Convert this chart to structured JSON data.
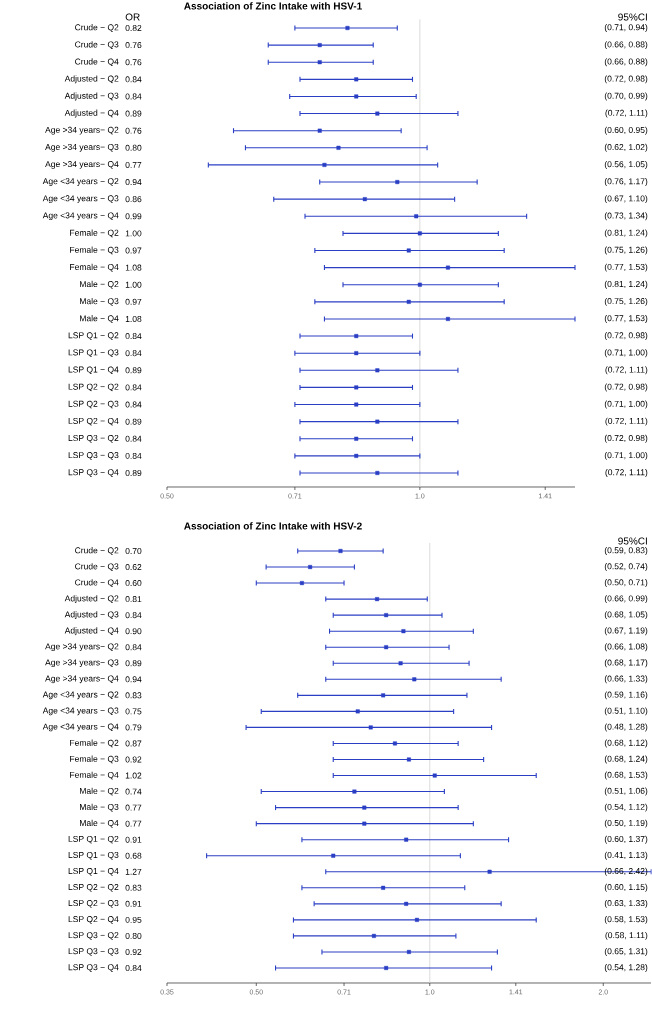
{
  "chart_data": [
    {
      "type": "scatter",
      "orientation": "horizontal",
      "title": "Association of Zinc Intake with HSV-1",
      "annotations": [
        "(0.71, 0.94)",
        "(0.66, 0.88)",
        "(0.66, 0.88)",
        "(0.72, 0.98)",
        "(0.70, 0.99)",
        "(0.72, 1.11)",
        "(0.60, 0.95)",
        "(0.62, 1.02)",
        "(0.56, 1.05)",
        "(0.76, 1.17)",
        "(0.67, 1.10)",
        "(0.73, 1.34)",
        "(0.81, 1.24)",
        "(0.75, 1.26)",
        "(0.77, 1.53)",
        "(0.81, 1.24)",
        "(0.75, 1.26)",
        "(0.77, 1.53)",
        "(0.72, 0.98)",
        "(0.71, 1.00)",
        "(0.72, 1.11)",
        "(0.72, 0.98)",
        "(0.71, 1.00)",
        "(0.72, 1.11)",
        "(0.72, 0.98)",
        "(0.71, 1.00)",
        "(0.72, 1.11)",
        "OR",
        "95%CI"
      ],
      "log": "x",
      "marker": "square",
      "color": "#2a3fc4",
      "categories": [
        "Crude − Q2",
        "Crude − Q3",
        "Crude − Q4",
        "Adjusted − Q2",
        "Adjusted − Q3",
        "Adjusted − Q4",
        "Age >34 years− Q2",
        "Age >34 years− Q3",
        "Age >34 years− Q4",
        "Age <34 years − Q2",
        "Age <34 years − Q3",
        "Age <34 years − Q4",
        "Female − Q2",
        "Female − Q3",
        "Female − Q4",
        "Male − Q2",
        "Male − Q3",
        "Male − Q4",
        "LSP Q1 − Q2",
        "LSP Q1 − Q3",
        "LSP Q1 − Q4",
        "LSP Q2 − Q2",
        "LSP Q2 − Q3",
        "LSP Q2 − Q4",
        "LSP Q3 − Q2",
        "LSP Q3 − Q3",
        "LSP Q3 − Q4"
      ],
      "values": [
        0.82,
        0.76,
        0.76,
        0.84,
        0.84,
        0.89,
        0.76,
        0.8,
        0.77,
        0.94,
        0.86,
        0.99,
        1.0,
        0.97,
        1.08,
        1.0,
        0.97,
        1.08,
        0.84,
        0.84,
        0.89,
        0.84,
        0.84,
        0.89,
        0.84,
        0.84,
        0.89
      ],
      "value_labels": [
        "0.82",
        "0.76",
        "0.76",
        "0.84",
        "0.84",
        "0.89",
        "0.76",
        "0.80",
        "0.77",
        "0.94",
        "0.86",
        "0.99",
        "1.00",
        "0.97",
        "1.08",
        "1.00",
        "0.97",
        "1.08",
        "0.84",
        "0.84",
        "0.89",
        "0.84",
        "0.84",
        "0.89",
        "0.84",
        "0.84",
        "0.89"
      ],
      "errors": [
        [
          0.71,
          0.94
        ],
        [
          0.66,
          0.88
        ],
        [
          0.66,
          0.88
        ],
        [
          0.72,
          0.98
        ],
        [
          0.7,
          0.99
        ],
        [
          0.72,
          1.11
        ],
        [
          0.6,
          0.95
        ],
        [
          0.62,
          1.02
        ],
        [
          0.56,
          1.05
        ],
        [
          0.76,
          1.17
        ],
        [
          0.67,
          1.1
        ],
        [
          0.73,
          1.34
        ],
        [
          0.81,
          1.24
        ],
        [
          0.75,
          1.26
        ],
        [
          0.77,
          1.53
        ],
        [
          0.81,
          1.24
        ],
        [
          0.75,
          1.26
        ],
        [
          0.77,
          1.53
        ],
        [
          0.72,
          0.98
        ],
        [
          0.71,
          1.0
        ],
        [
          0.72,
          1.11
        ],
        [
          0.72,
          0.98
        ],
        [
          0.71,
          1.0
        ],
        [
          0.72,
          1.11
        ],
        [
          0.72,
          0.98
        ],
        [
          0.71,
          1.0
        ],
        [
          0.72,
          1.11
        ]
      ],
      "xlim": [
        0.5,
        1.53
      ],
      "xticks": [
        {
          "value": 0.5,
          "label": "0.50"
        },
        0.71,
        {
          "value": 1.0,
          "label": "1.0"
        },
        1.41
      ],
      "ref_lines": [
        {
          "axis": "x",
          "value": 1,
          "color": "#d0d0d0"
        }
      ]
    },
    {
      "type": "scatter",
      "orientation": "horizontal",
      "title": "Association of Zinc Intake with HSV-2",
      "annotations": [
        "(0.59, 0.83)",
        "(0.52, 0.74)",
        "(0.50, 0.71)",
        "(0.66, 0.99)",
        "(0.68, 1.05)",
        "(0.67, 1.19)",
        "(0.66, 1.08)",
        "(0.68, 1.17)",
        "(0.66, 1.33)",
        "(0.59, 1.16)",
        "(0.51, 1.10)",
        "(0.48, 1.28)",
        "(0.68, 1.12)",
        "(0.68, 1.24)",
        "(0.68, 1.53)",
        "(0.51, 1.06)",
        "(0.54, 1.12)",
        "(0.50, 1.19)",
        "(0.60, 1.37)",
        "(0.41, 1.13)",
        "(0.66, 2.42)",
        "(0.60, 1.15)",
        "(0.63, 1.33)",
        "(0.58, 1.53)",
        "(0.58, 1.11)",
        "(0.65, 1.31)",
        "(0.54, 1.28)",
        "95%CI"
      ],
      "log": "x",
      "marker": "square",
      "color": "#2a3fc4",
      "categories": [
        "Crude − Q2",
        "Crude − Q3",
        "Crude − Q4",
        "Adjusted − Q2",
        "Adjusted − Q3",
        "Adjusted − Q4",
        "Age >34 years− Q2",
        "Age >34 years− Q3",
        "Age >34 years− Q4",
        "Age <34 years − Q2",
        "Age <34 years − Q3",
        "Age <34 years − Q4",
        "Female − Q2",
        "Female − Q3",
        "Female − Q4",
        "Male − Q2",
        "Male − Q3",
        "Male − Q4",
        "LSP Q1 − Q2",
        "LSP Q1 − Q3",
        "LSP Q1 − Q4",
        "LSP Q2 − Q2",
        "LSP Q2 − Q3",
        "LSP Q2 − Q4",
        "LSP Q3 − Q2",
        "LSP Q3 − Q3",
        "LSP Q3 − Q4"
      ],
      "values": [
        0.7,
        0.62,
        0.6,
        0.81,
        0.84,
        0.9,
        0.84,
        0.89,
        0.94,
        0.83,
        0.75,
        0.79,
        0.87,
        0.92,
        1.02,
        0.74,
        0.77,
        0.77,
        0.91,
        0.68,
        1.27,
        0.83,
        0.91,
        0.95,
        0.8,
        0.92,
        0.84
      ],
      "value_labels": [
        "0.70",
        "0.62",
        "0.60",
        "0.81",
        "0.84",
        "0.90",
        "0.84",
        "0.89",
        "0.94",
        "0.83",
        "0.75",
        "0.79",
        "0.87",
        "0.92",
        "1.02",
        "0.74",
        "0.77",
        "0.77",
        "0.91",
        "0.68",
        "1.27",
        "0.83",
        "0.91",
        "0.95",
        "0.80",
        "0.92",
        "0.84"
      ],
      "errors": [
        [
          0.59,
          0.83
        ],
        [
          0.52,
          0.74
        ],
        [
          0.5,
          0.71
        ],
        [
          0.66,
          0.99
        ],
        [
          0.68,
          1.05
        ],
        [
          0.67,
          1.19
        ],
        [
          0.66,
          1.08
        ],
        [
          0.68,
          1.17
        ],
        [
          0.66,
          1.33
        ],
        [
          0.59,
          1.16
        ],
        [
          0.51,
          1.1
        ],
        [
          0.48,
          1.28
        ],
        [
          0.68,
          1.12
        ],
        [
          0.68,
          1.24
        ],
        [
          0.68,
          1.53
        ],
        [
          0.51,
          1.06
        ],
        [
          0.54,
          1.12
        ],
        [
          0.5,
          1.19
        ],
        [
          0.6,
          1.37
        ],
        [
          0.41,
          1.13
        ],
        [
          0.66,
          2.42
        ],
        [
          0.6,
          1.15
        ],
        [
          0.63,
          1.33
        ],
        [
          0.58,
          1.53
        ],
        [
          0.58,
          1.11
        ],
        [
          0.65,
          1.31
        ],
        [
          0.54,
          1.28
        ]
      ],
      "xlim": [
        0.35,
        2.42
      ],
      "xticks": [
        0.35,
        {
          "value": 0.5,
          "label": "0.50"
        },
        0.71,
        {
          "value": 1.0,
          "label": "1.0"
        },
        1.41,
        {
          "value": 2.0,
          "label": "2.0"
        }
      ],
      "ref_lines": [
        {
          "axis": "x",
          "value": 1,
          "color": "#d0d0d0"
        }
      ]
    }
  ]
}
